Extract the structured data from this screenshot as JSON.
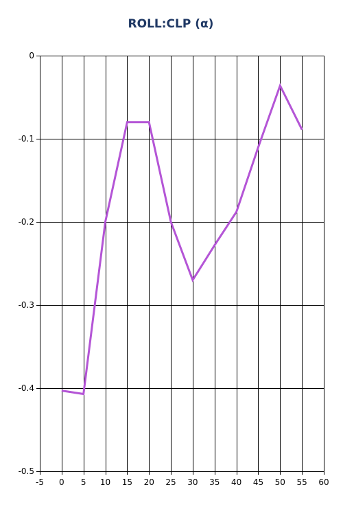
{
  "chart_data": {
    "type": "line",
    "title": "ROLL:CLP (α)",
    "xlabel": "",
    "ylabel": "",
    "xlim": [
      -5,
      60
    ],
    "ylim": [
      -0.5,
      0
    ],
    "x_ticks": [
      -5,
      0,
      5,
      10,
      15,
      20,
      25,
      30,
      35,
      40,
      45,
      50,
      55,
      60
    ],
    "x_tick_labels": [
      "-5",
      "0",
      "5",
      "10",
      "15",
      "20",
      "25",
      "30",
      "35",
      "40",
      "45",
      "50",
      "55",
      "60"
    ],
    "y_ticks": [
      0,
      -0.1,
      -0.2,
      -0.3,
      -0.4,
      -0.5
    ],
    "y_tick_labels": [
      "0",
      "-0.1",
      "-0.2",
      "-0.3",
      "-0.4",
      "-0.5"
    ],
    "grid": true,
    "series": [
      {
        "color": "#b455d6",
        "x": [
          0,
          5,
          10,
          15,
          20,
          25,
          30,
          35,
          40,
          45,
          50,
          55
        ],
        "y": [
          -0.403,
          -0.407,
          -0.2,
          -0.08,
          -0.08,
          -0.2,
          -0.27,
          -0.228,
          -0.188,
          -0.11,
          -0.036,
          -0.089
        ]
      }
    ]
  }
}
